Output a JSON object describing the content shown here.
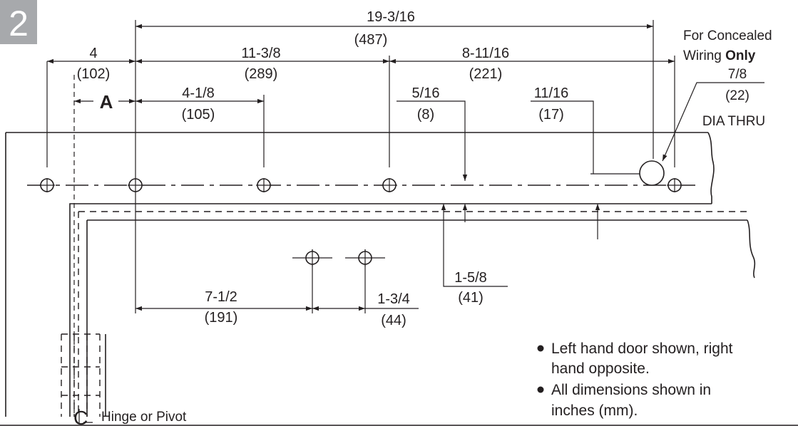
{
  "step_number": "2",
  "label_a": "A",
  "dimensions": {
    "d1": {
      "in": "19-3/16",
      "mm": "(487)"
    },
    "d2": {
      "in": "4",
      "mm": "(102)"
    },
    "d3": {
      "in": "11-3/8",
      "mm": "(289)"
    },
    "d4": {
      "in": "8-11/16",
      "mm": "(221)"
    },
    "d5": {
      "in": "4-1/8",
      "mm": "(105)"
    },
    "d6": {
      "in": "5/16",
      "mm": "(8)"
    },
    "d7": {
      "in": "11/16",
      "mm": "(17)"
    },
    "d8": {
      "in": "1-5/8",
      "mm": "(41)"
    },
    "d9": {
      "in": "7-1/2",
      "mm": "(191)"
    },
    "d10": {
      "in": "1-3/4",
      "mm": "(44)"
    }
  },
  "wiring": {
    "line1": "For Concealed",
    "line2_prefix": "Wiring ",
    "line2_bold": "Only",
    "dia_in": "7/8",
    "dia_mm": "(22)",
    "dia_note": "DIA THRU"
  },
  "hinge": {
    "symbol": "C",
    "label": "Hinge or Pivot"
  },
  "notes": [
    {
      "line1": "Left hand door shown, right",
      "line2": "hand opposite."
    },
    {
      "line1": "All dimensions shown in",
      "line2": "inches (mm)."
    }
  ]
}
